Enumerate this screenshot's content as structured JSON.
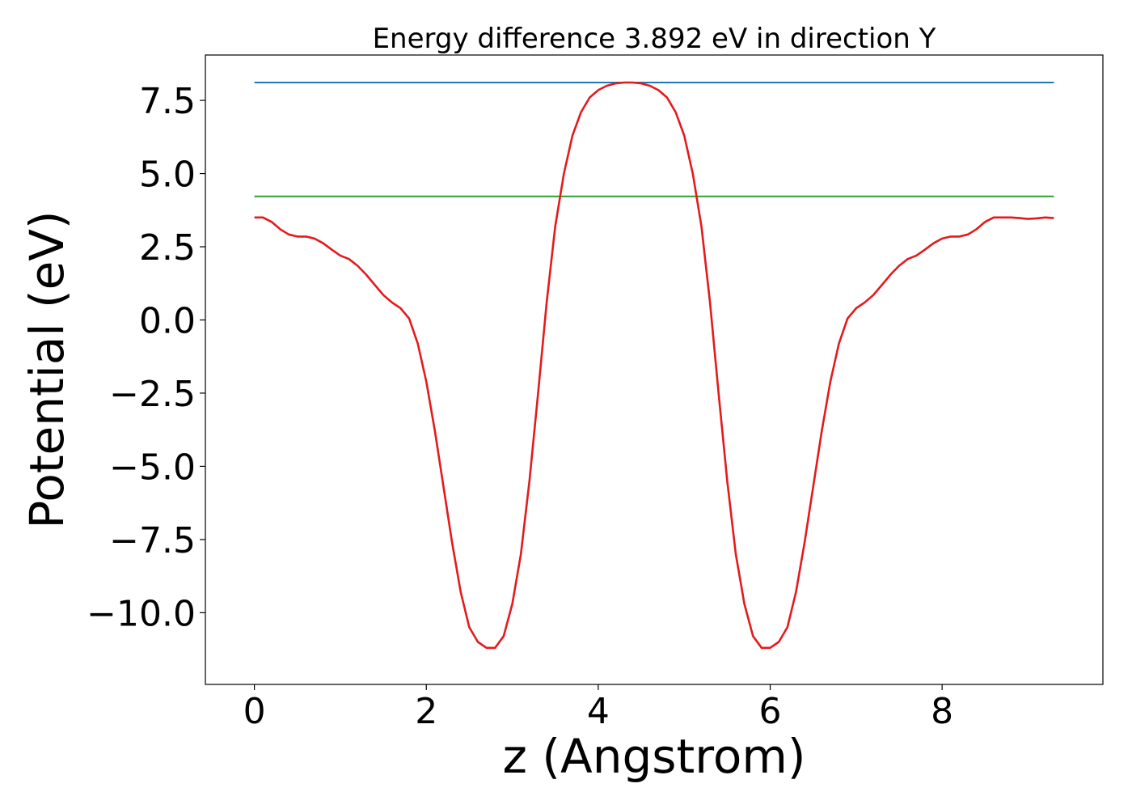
{
  "chart_data": {
    "type": "line",
    "title": "Energy difference 3.892 eV in direction Y",
    "xlabel": "z (Angstrom)",
    "ylabel": "Potential (eV)",
    "xlim": [
      -0.57,
      9.87
    ],
    "ylim": [
      -12.45,
      9.05
    ],
    "xticks": [
      0,
      2,
      4,
      6,
      8
    ],
    "xtick_labels": [
      "0",
      "2",
      "4",
      "6",
      "8"
    ],
    "yticks": [
      -10.0,
      -7.5,
      -5.0,
      -2.5,
      0.0,
      2.5,
      5.0,
      7.5
    ],
    "ytick_labels": [
      "−10.0",
      "−7.5",
      "−5.0",
      "−2.5",
      "0.0",
      "2.5",
      "5.0",
      "7.5"
    ],
    "grid": false,
    "series": [
      {
        "color": "#1f77b4",
        "x": [
          0,
          9.3
        ],
        "y": [
          8.11,
          8.11
        ]
      },
      {
        "color": "#2ca02c",
        "x": [
          0,
          9.3
        ],
        "y": [
          4.22,
          4.22
        ]
      },
      {
        "color": "#e41a1c",
        "x": [
          0.0,
          0.1,
          0.2,
          0.3,
          0.4,
          0.5,
          0.6,
          0.7,
          0.8,
          0.9,
          1.0,
          1.1,
          1.2,
          1.3,
          1.4,
          1.5,
          1.6,
          1.7,
          1.8,
          1.9,
          2.0,
          2.1,
          2.2,
          2.3,
          2.4,
          2.5,
          2.6,
          2.7,
          2.8,
          2.9,
          3.0,
          3.1,
          3.2,
          3.3,
          3.4,
          3.5,
          3.6,
          3.7,
          3.8,
          3.9,
          4.0,
          4.1,
          4.2,
          4.3,
          4.4,
          4.5,
          4.6,
          4.7,
          4.8,
          4.9,
          5.0,
          5.1,
          5.2,
          5.3,
          5.4,
          5.5,
          5.6,
          5.7,
          5.8,
          5.9,
          6.0,
          6.1,
          6.2,
          6.3,
          6.4,
          6.5,
          6.6,
          6.7,
          6.8,
          6.9,
          7.0,
          7.1,
          7.2,
          7.3,
          7.4,
          7.5,
          7.6,
          7.7,
          7.8,
          7.9,
          8.0,
          8.1,
          8.2,
          8.3,
          8.4,
          8.5,
          8.6,
          8.7,
          8.8,
          8.9,
          9.0,
          9.1,
          9.2,
          9.3
        ],
        "y": [
          3.5,
          3.5,
          3.35,
          3.1,
          2.92,
          2.85,
          2.85,
          2.78,
          2.62,
          2.4,
          2.2,
          2.08,
          1.85,
          1.55,
          1.2,
          0.85,
          0.6,
          0.4,
          0.05,
          -0.8,
          -2.1,
          -3.8,
          -5.7,
          -7.6,
          -9.3,
          -10.5,
          -11.0,
          -11.2,
          -11.2,
          -10.8,
          -9.7,
          -8.0,
          -5.5,
          -2.5,
          0.6,
          3.2,
          5.0,
          6.3,
          7.1,
          7.6,
          7.85,
          8.0,
          8.08,
          8.11,
          8.11,
          8.08,
          8.0,
          7.85,
          7.6,
          7.1,
          6.3,
          5.0,
          3.2,
          0.6,
          -2.5,
          -5.5,
          -8.0,
          -9.7,
          -10.8,
          -11.2,
          -11.2,
          -11.0,
          -10.5,
          -9.3,
          -7.6,
          -5.7,
          -3.8,
          -2.1,
          -0.8,
          0.05,
          0.4,
          0.6,
          0.85,
          1.2,
          1.55,
          1.85,
          2.08,
          2.2,
          2.4,
          2.62,
          2.78,
          2.85,
          2.85,
          2.92,
          3.1,
          3.35,
          3.5,
          3.5,
          3.5,
          3.48,
          3.45,
          3.47,
          3.5,
          3.48
        ]
      }
    ]
  }
}
